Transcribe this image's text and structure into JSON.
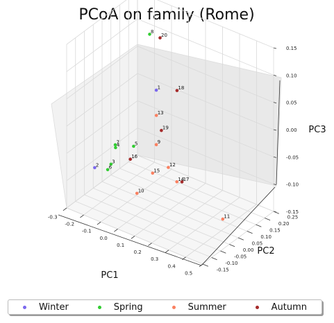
{
  "chart_data": {
    "type": "scatter",
    "title": "PCoA on family (Rome)",
    "xlabel": "PC1",
    "ylabel": "PC2",
    "zlabel": "PC3",
    "xlim": [
      -0.3,
      0.5
    ],
    "ylim": [
      -0.15,
      0.25
    ],
    "zlim": [
      -0.15,
      0.15
    ],
    "xticks": [
      "-0.3",
      "-0.2",
      "-0.1",
      "0.0",
      "0.1",
      "0.2",
      "0.3",
      "0.4",
      "0.5"
    ],
    "yticks": [
      "-0.15",
      "-0.10",
      "-0.05",
      "0.00",
      "0.05",
      "0.10",
      "0.15",
      "0.20",
      "0.25"
    ],
    "zticks": [
      "-0.15",
      "-0.10",
      "-0.05",
      "0.00",
      "0.05",
      "0.10",
      "0.15"
    ],
    "grid": true,
    "legend_position": "bottom",
    "series": [
      {
        "name": "Winter",
        "color": "#7b68ee",
        "points": [
          {
            "label": "1",
            "x": 0.05,
            "y": 0.02,
            "z": 0.07
          },
          {
            "label": "2",
            "x": -0.26,
            "y": -0.03,
            "z": -0.1
          }
        ]
      },
      {
        "name": "Spring",
        "color": "#32cd32",
        "points": [
          {
            "label": "3",
            "x": -0.05,
            "y": -0.14,
            "z": -0.04
          },
          {
            "label": "4",
            "x": -0.2,
            "y": 0.03,
            "z": -0.07
          },
          {
            "label": "5",
            "x": 0.0,
            "y": -0.06,
            "z": -0.02
          },
          {
            "label": "6",
            "x": -0.09,
            "y": -0.12,
            "z": -0.06
          },
          {
            "label": "7",
            "x": -0.16,
            "y": -0.01,
            "z": -0.05
          },
          {
            "label": "8",
            "x": -0.01,
            "y": 0.04,
            "z": 0.16
          }
        ]
      },
      {
        "name": "Summer",
        "color": "#fa8060",
        "points": [
          {
            "label": "9",
            "x": 0.05,
            "y": 0.02,
            "z": -0.03
          },
          {
            "label": "10",
            "x": 0.03,
            "y": -0.07,
            "z": -0.1
          },
          {
            "label": "11",
            "x": 0.43,
            "y": 0.03,
            "z": -0.12
          },
          {
            "label": "12",
            "x": 0.1,
            "y": 0.04,
            "z": -0.07
          },
          {
            "label": "13",
            "x": 0.04,
            "y": 0.03,
            "z": 0.02
          },
          {
            "label": "14",
            "x": 0.15,
            "y": 0.04,
            "z": -0.09
          },
          {
            "label": "15",
            "x": 0.07,
            "y": -0.02,
            "z": -0.07
          }
        ]
      },
      {
        "name": "Autumn",
        "color": "#a52a2a",
        "points": [
          {
            "label": "16",
            "x": -0.03,
            "y": -0.05,
            "z": -0.05
          },
          {
            "label": "17",
            "x": 0.17,
            "y": 0.05,
            "z": -0.09
          },
          {
            "label": "18",
            "x": 0.13,
            "y": 0.06,
            "z": 0.07
          },
          {
            "label": "19",
            "x": 0.08,
            "y": 0.02,
            "z": 0.0
          },
          {
            "label": "20",
            "x": 0.02,
            "y": 0.07,
            "z": 0.15
          }
        ]
      }
    ]
  }
}
